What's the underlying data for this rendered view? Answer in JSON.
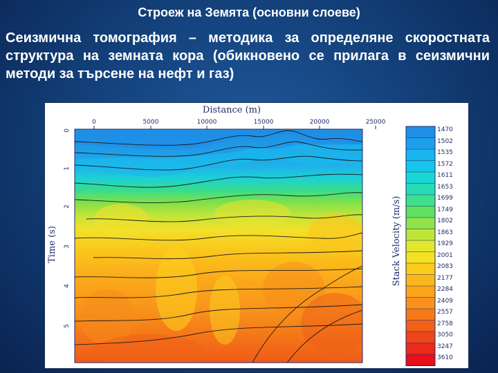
{
  "slide": {
    "title": "Строеж на Земята (основни слоеве)",
    "paragraph": "Сеизмична томография – методика за определяне скоростната структура на земната кора (обикновено се прилага в сеизмични методи за търсене на нефт и газ)"
  },
  "figure": {
    "x_axis_title": "Distance (m)",
    "y_axis_title": "Time (s)",
    "colorbar_title": "Stack Velocity (m/s)",
    "x_ticks": [
      "0",
      "5000",
      "10000",
      "15000",
      "20000",
      "25000"
    ],
    "y_ticks": [
      "0",
      "1",
      "2",
      "3",
      "4",
      "5"
    ],
    "colorbar_values": [
      "1470",
      "1502",
      "1535",
      "1572",
      "1611",
      "1653",
      "1699",
      "1749",
      "1802",
      "1863",
      "1929",
      "2001",
      "2083",
      "2177",
      "2284",
      "2409",
      "2557",
      "2758",
      "3050",
      "3247",
      "3610"
    ],
    "colors": {
      "palette": [
        "#1f8fe6",
        "#1da0ec",
        "#19b4ee",
        "#16c6ea",
        "#1ad6d6",
        "#27dcb4",
        "#3ee08c",
        "#60e060",
        "#90e34a",
        "#bde63a",
        "#e2e72c",
        "#f7e021",
        "#fbcb1c",
        "#fbb81a",
        "#fba51a",
        "#f9911a",
        "#f67a19",
        "#f2601a",
        "#ee451a",
        "#ea2a1a",
        "#e60f1a"
      ]
    }
  }
}
